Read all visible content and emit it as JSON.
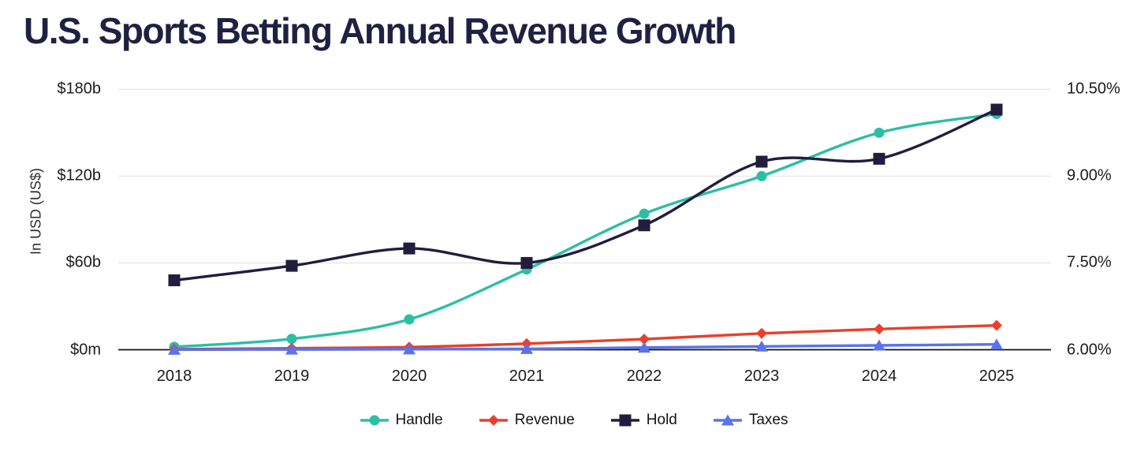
{
  "title": "U.S. Sports Betting Annual Revenue Growth",
  "chart_data": {
    "type": "line",
    "title": "U.S. Sports Betting Annual Revenue Growth",
    "x": [
      2018,
      2019,
      2020,
      2021,
      2022,
      2023,
      2024,
      2025
    ],
    "series": [
      {
        "name": "Handle",
        "axis": "left",
        "unit": "USD billions",
        "color": "#2bbfa5",
        "marker": "circle",
        "values": [
          2,
          7.5,
          21,
          55.5,
          94,
          120,
          150,
          163
        ]
      },
      {
        "name": "Revenue",
        "axis": "left",
        "unit": "USD billions",
        "color": "#e8402c",
        "marker": "diamond",
        "values": [
          0.4,
          1,
          1.8,
          4.2,
          7.3,
          11.3,
          14.3,
          16.8
        ]
      },
      {
        "name": "Hold",
        "axis": "right",
        "unit": "percent",
        "color": "#201d3e",
        "marker": "square",
        "values": [
          7.2,
          7.45,
          7.75,
          7.5,
          8.15,
          9.25,
          9.3,
          10.15
        ]
      },
      {
        "name": "Taxes",
        "axis": "left",
        "unit": "USD billions",
        "color": "#5a73e8",
        "marker": "triangle",
        "values": [
          0.1,
          0.2,
          0.35,
          0.6,
          1.5,
          2.3,
          3.0,
          3.7
        ]
      }
    ],
    "left_axis": {
      "label": "In USD (US$)",
      "ticks": [
        "$180b",
        "$120b",
        "$60b",
        "$0m"
      ],
      "range": [
        0,
        180
      ]
    },
    "right_axis": {
      "ticks": [
        "10.50%",
        "9.00%",
        "7.50%",
        "6.00%"
      ],
      "range": [
        6,
        10.5
      ]
    },
    "legend": [
      "Handle",
      "Revenue",
      "Hold",
      "Taxes"
    ],
    "legend_position": "bottom",
    "grid": true,
    "colors": {
      "title": "#1f2142",
      "gridline": "#e7e7e7",
      "axis_line": "#111111",
      "tick_text": "#1c1c1c"
    }
  }
}
